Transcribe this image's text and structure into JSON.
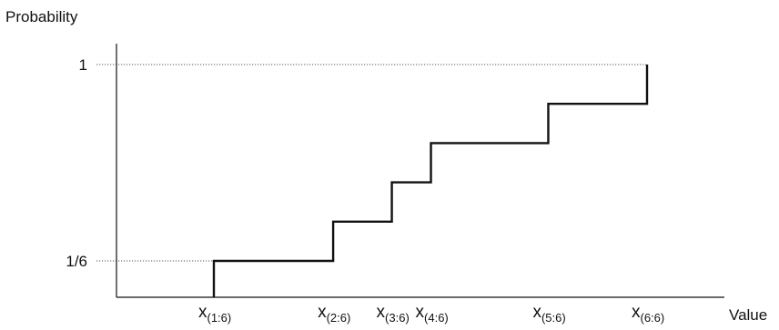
{
  "chart_data": {
    "type": "line",
    "title": "",
    "ylabel": "Probability",
    "xlabel": "Value",
    "step": true,
    "y_ticks": [
      {
        "label": "1/6",
        "value": 0.16666667
      },
      {
        "label": "1",
        "value": 1
      }
    ],
    "x_tick_base": "x",
    "x_ticks": [
      {
        "sub": "(1:6)",
        "value": 1.0
      },
      {
        "sub": "(2:6)",
        "value": 2.22
      },
      {
        "sub": "(3:6)",
        "value": 2.82
      },
      {
        "sub": "(4:6)",
        "value": 3.22
      },
      {
        "sub": "(5:6)",
        "value": 4.42
      },
      {
        "sub": "(6:6)",
        "value": 5.43
      }
    ],
    "series": [
      {
        "x": [
          1.0,
          2.22,
          2.82,
          3.22,
          4.42,
          5.43
        ],
        "y": [
          0.16666667,
          0.33333333,
          0.5,
          0.66666667,
          0.83333333,
          1.0
        ]
      }
    ],
    "xlim": [
      0.0,
      6.2
    ],
    "ylim": [
      -0.15,
      1.15
    ],
    "reference_lines": "dotted at y ticks",
    "grid": false,
    "legend": "none"
  }
}
